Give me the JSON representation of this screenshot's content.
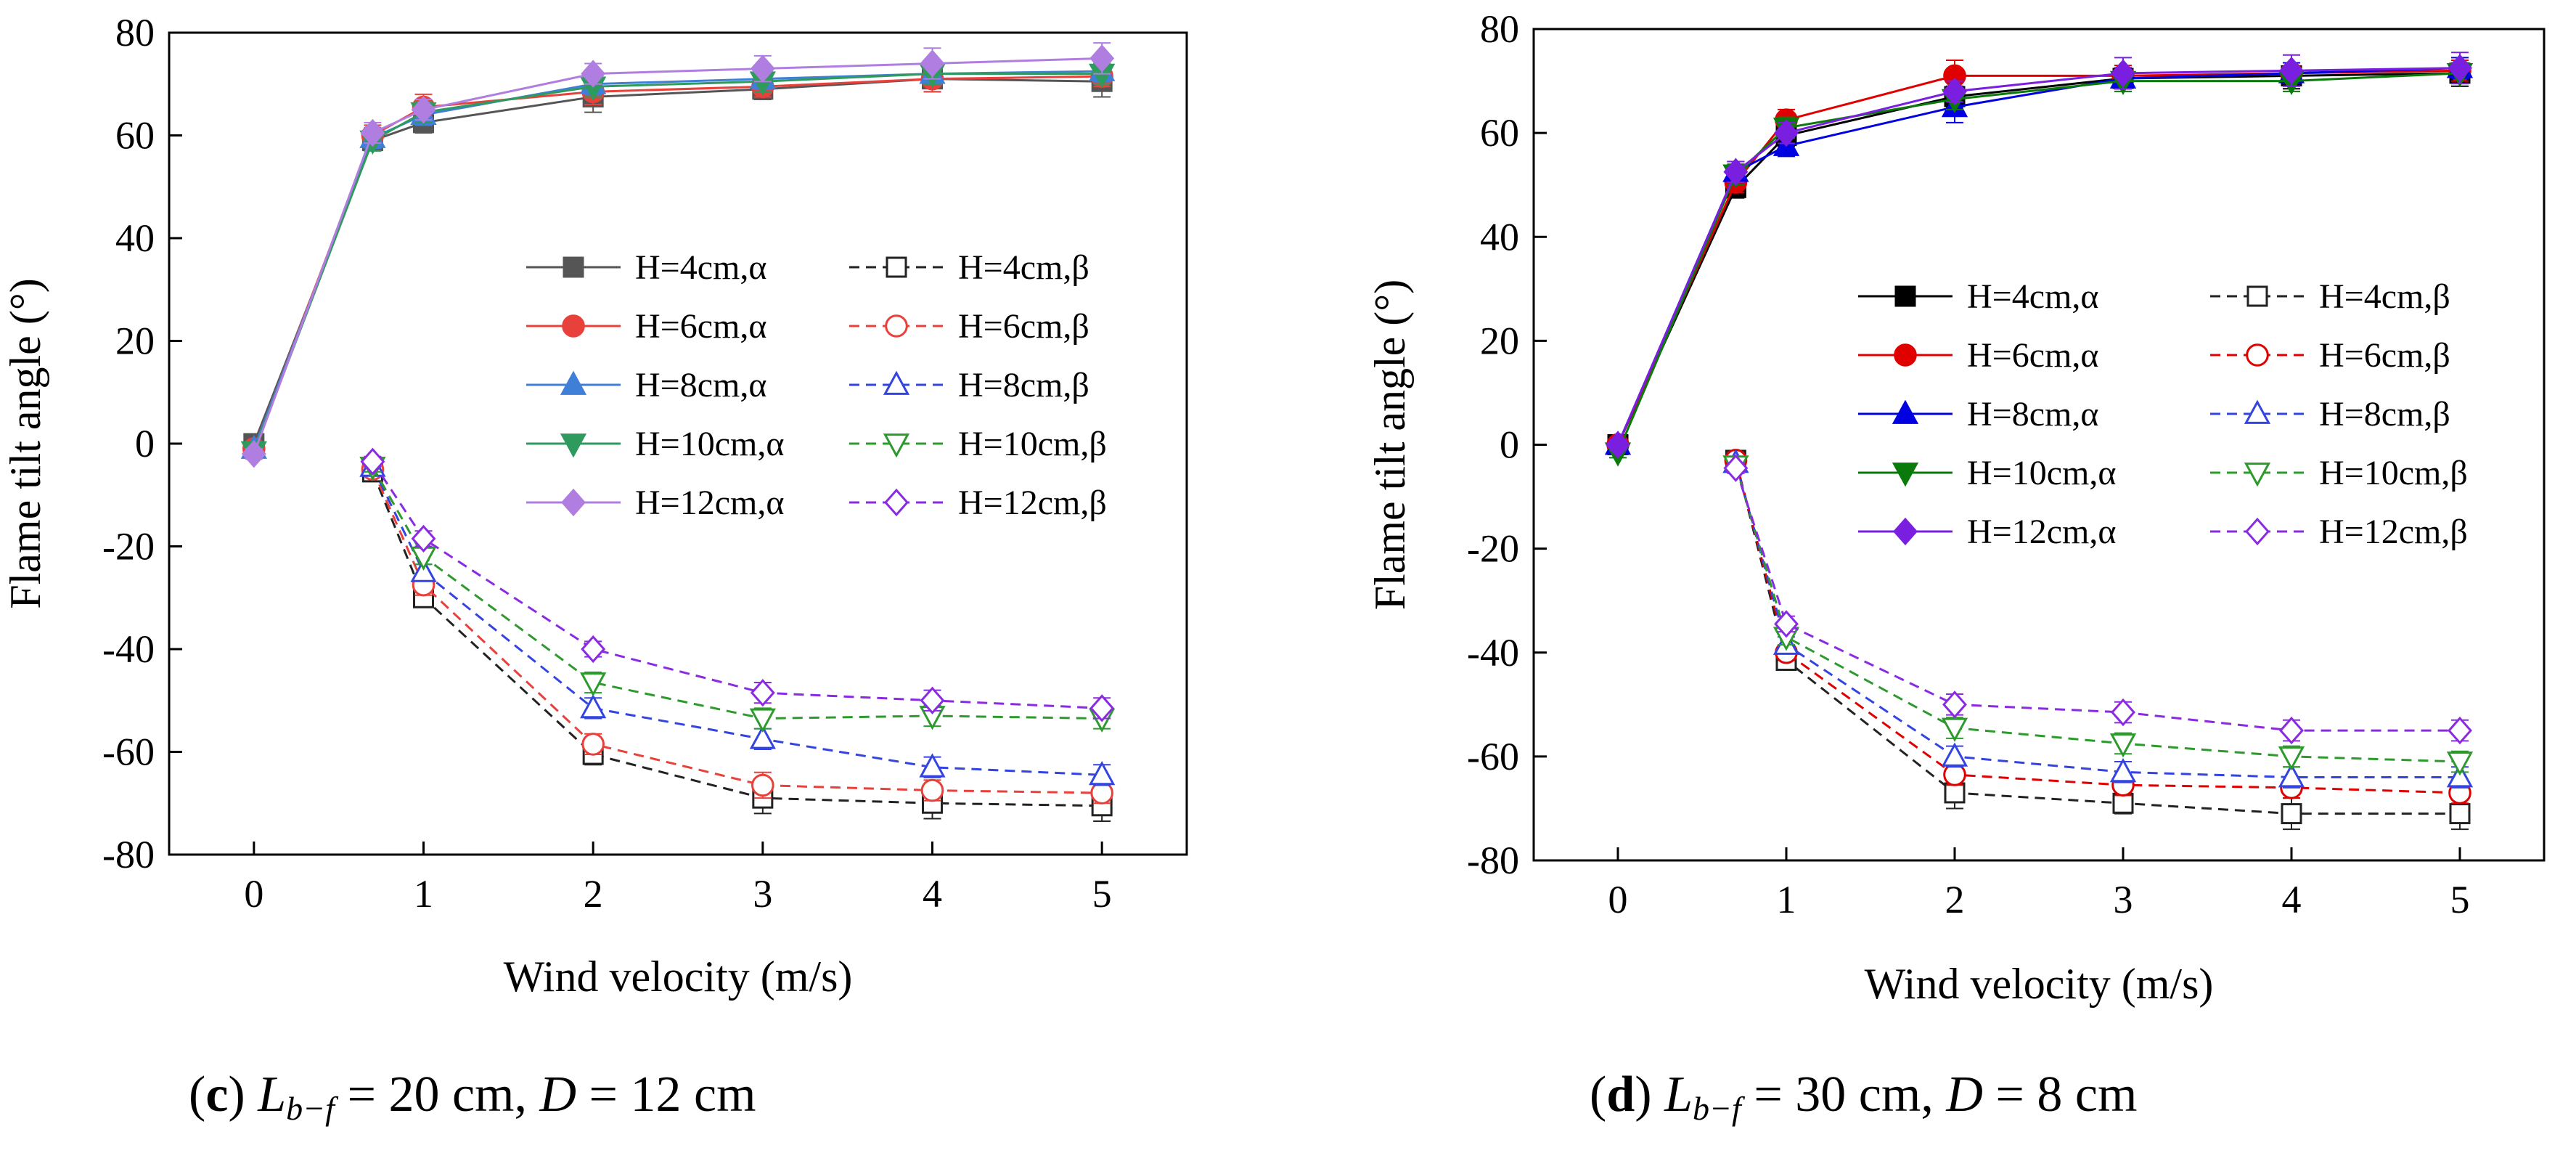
{
  "chart_data": [
    {
      "type": "line",
      "panel": "c",
      "caption": {
        "label": "c",
        "lhs": "L",
        "sub": "b−f",
        "value": " = 20 cm, ",
        "d_var": "D",
        "d_value": " = 12 cm"
      },
      "xlabel": "Wind velocity (m/s)",
      "ylabel": "Flame tilt angle (°)",
      "xlim": [
        -0.5,
        5.5
      ],
      "ylim": [
        -80,
        80
      ],
      "xticks": [
        0,
        1,
        2,
        3,
        4,
        5
      ],
      "yticks": [
        -80,
        -60,
        -40,
        -20,
        0,
        20,
        40,
        60,
        80
      ],
      "x": [
        0,
        0.7,
        1,
        2,
        3,
        4,
        5
      ],
      "legend_position": "center-right",
      "series": [
        {
          "name": "H=4cm,α",
          "color": "#555555",
          "style": "solid",
          "marker": "square",
          "filled": true,
          "values": [
            0,
            59,
            62.5,
            67.5,
            69,
            71,
            70.5
          ],
          "errors": [
            1,
            2,
            2,
            3,
            2,
            2.5,
            3
          ]
        },
        {
          "name": "H=6cm,α",
          "color": "#e8413c",
          "style": "solid",
          "marker": "circle",
          "filled": true,
          "values": [
            -1,
            60,
            65.5,
            68.5,
            69.5,
            71,
            71.5
          ],
          "errors": [
            1,
            2,
            2.5,
            2.5,
            2,
            2.5,
            2
          ]
        },
        {
          "name": "H=8cm,α",
          "color": "#3f7fd8",
          "style": "solid",
          "marker": "triangle-up",
          "filled": true,
          "values": [
            -1,
            59.5,
            64,
            70,
            71,
            72,
            72.5
          ],
          "errors": [
            1,
            2,
            2,
            2,
            2,
            2,
            2
          ]
        },
        {
          "name": "H=10cm,α",
          "color": "#2e9a5e",
          "style": "solid",
          "marker": "triangle-down",
          "filled": true,
          "values": [
            -1.5,
            59,
            64.5,
            69.5,
            70.5,
            72,
            72
          ],
          "errors": [
            1,
            2,
            2,
            2,
            2,
            2,
            2
          ]
        },
        {
          "name": "H=12cm,α",
          "color": "#b07ee0",
          "style": "solid",
          "marker": "diamond",
          "filled": true,
          "values": [
            -2,
            60.5,
            65,
            72,
            73,
            74,
            75
          ],
          "errors": [
            1,
            2,
            2,
            2,
            2.5,
            3,
            3
          ]
        },
        {
          "name": "H=4cm,β",
          "color": "#222222",
          "style": "dashed",
          "marker": "square",
          "filled": false,
          "values": [
            null,
            -5.5,
            -30,
            -60.5,
            -69,
            -70,
            -70.5
          ],
          "errors": [
            0,
            1,
            1.5,
            2,
            3,
            3,
            3
          ]
        },
        {
          "name": "H=6cm,β",
          "color": "#e8413c",
          "style": "dashed",
          "marker": "circle",
          "filled": false,
          "values": [
            null,
            -5,
            -27.5,
            -58.5,
            -66.5,
            -67.5,
            -68
          ],
          "errors": [
            0,
            1,
            2,
            2,
            2.5,
            2,
            2
          ]
        },
        {
          "name": "H=8cm,β",
          "color": "#3344e0",
          "style": "dashed",
          "marker": "triangle-up",
          "filled": false,
          "values": [
            null,
            -4.5,
            -25,
            -51.5,
            -57.5,
            -63,
            -64.5
          ],
          "errors": [
            0,
            1,
            1.5,
            2,
            2,
            2,
            2
          ]
        },
        {
          "name": "H=10cm,β",
          "color": "#2e9a2e",
          "style": "dashed",
          "marker": "triangle-down",
          "filled": false,
          "values": [
            null,
            -4.5,
            -22,
            -46.5,
            -53.5,
            -53,
            -53.5
          ],
          "errors": [
            0,
            1,
            1.5,
            2,
            2,
            2,
            2
          ]
        },
        {
          "name": "H=12cm,β",
          "color": "#8a2be2",
          "style": "dashed",
          "marker": "diamond",
          "filled": false,
          "values": [
            null,
            -3.5,
            -18.5,
            -40,
            -48.5,
            -50,
            -51.5
          ],
          "errors": [
            0,
            1,
            1.5,
            1.5,
            2,
            2,
            2
          ]
        }
      ]
    },
    {
      "type": "line",
      "panel": "d",
      "caption": {
        "label": "d",
        "lhs": "L",
        "sub": "b−f",
        "value": " = 30 cm, ",
        "d_var": "D",
        "d_value": " = 8 cm"
      },
      "xlabel": "Wind velocity (m/s)",
      "ylabel": "Flame tilt angle (°)",
      "xlim": [
        -0.5,
        5.5
      ],
      "ylim": [
        -80,
        80
      ],
      "xticks": [
        0,
        1,
        2,
        3,
        4,
        5
      ],
      "yticks": [
        -80,
        -60,
        -40,
        -20,
        0,
        20,
        40,
        60,
        80
      ],
      "x": [
        0,
        0.7,
        1,
        2,
        3,
        4,
        5
      ],
      "legend_position": "center-right",
      "series": [
        {
          "name": "H=4cm,α",
          "color": "#000000",
          "style": "solid",
          "marker": "square",
          "filled": true,
          "values": [
            0,
            49.5,
            59.5,
            67,
            70.5,
            71,
            71.5
          ],
          "errors": [
            1,
            2,
            2,
            2,
            2,
            2.5,
            2.5
          ]
        },
        {
          "name": "H=6cm,α",
          "color": "#e00000",
          "style": "solid",
          "marker": "circle",
          "filled": true,
          "values": [
            0,
            50.5,
            62.5,
            71,
            71,
            71.5,
            72
          ],
          "errors": [
            1,
            2,
            2,
            3,
            2,
            2,
            2
          ]
        },
        {
          "name": "H=8cm,α",
          "color": "#0000e0",
          "style": "solid",
          "marker": "triangle-up",
          "filled": true,
          "values": [
            0,
            52.5,
            57.5,
            65,
            70.5,
            71.5,
            72.5
          ],
          "errors": [
            1,
            2,
            2,
            3,
            2,
            2,
            2
          ]
        },
        {
          "name": "H=10cm,α",
          "color": "#0a7a0a",
          "style": "solid",
          "marker": "triangle-down",
          "filled": true,
          "values": [
            -1.5,
            52,
            61,
            66.5,
            70,
            70,
            71.5
          ],
          "errors": [
            1,
            2,
            2,
            2,
            2,
            2,
            2
          ]
        },
        {
          "name": "H=12cm,α",
          "color": "#7a1fe0",
          "style": "solid",
          "marker": "diamond",
          "filled": true,
          "values": [
            0,
            52.5,
            60,
            68,
            71.5,
            72,
            72.5
          ],
          "errors": [
            1,
            2,
            2,
            2,
            3,
            3,
            3
          ]
        },
        {
          "name": "H=4cm,β",
          "color": "#222222",
          "style": "dashed",
          "marker": "square",
          "filled": false,
          "values": [
            null,
            -3,
            -41.5,
            -67,
            -69,
            -71,
            -71
          ],
          "errors": [
            0,
            1,
            1.5,
            3,
            2,
            3,
            3
          ]
        },
        {
          "name": "H=6cm,β",
          "color": "#e00000",
          "style": "dashed",
          "marker": "circle",
          "filled": false,
          "values": [
            null,
            -3,
            -40,
            -63.5,
            -65.5,
            -66,
            -67
          ],
          "errors": [
            0,
            1,
            1.5,
            2,
            2,
            2,
            2
          ]
        },
        {
          "name": "H=8cm,β",
          "color": "#3344e0",
          "style": "dashed",
          "marker": "triangle-up",
          "filled": false,
          "values": [
            null,
            -3.5,
            -38.5,
            -60,
            -63,
            -64,
            -64
          ],
          "errors": [
            0,
            1,
            1.5,
            2,
            2,
            2,
            2
          ]
        },
        {
          "name": "H=10cm,β",
          "color": "#2e9a2e",
          "style": "dashed",
          "marker": "triangle-down",
          "filled": false,
          "values": [
            null,
            -4,
            -37,
            -54.5,
            -57.5,
            -60,
            -61
          ],
          "errors": [
            0,
            1,
            1.5,
            2,
            2,
            2,
            2
          ]
        },
        {
          "name": "H=12cm,β",
          "color": "#8a2be2",
          "style": "dashed",
          "marker": "diamond",
          "filled": false,
          "values": [
            null,
            -4.5,
            -34.5,
            -50,
            -51.5,
            -55,
            -55
          ],
          "errors": [
            0,
            1,
            1.5,
            2,
            2,
            2,
            2
          ]
        }
      ]
    }
  ]
}
